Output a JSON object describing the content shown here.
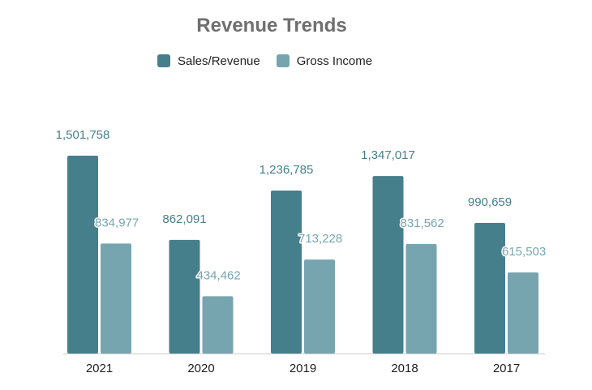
{
  "chart_data": {
    "type": "bar",
    "title": "Revenue Trends",
    "categories": [
      "2021",
      "2020",
      "2019",
      "2018",
      "2017"
    ],
    "series": [
      {
        "name": "Sales/Revenue",
        "color": "#457f8b",
        "values": [
          1501758,
          862091,
          1236785,
          1347017,
          990659
        ],
        "labels": [
          "1,501,758",
          "862,091",
          "1,236,785",
          "1,347,017",
          "990,659"
        ]
      },
      {
        "name": "Gross Income",
        "color": "#77a5af",
        "values": [
          834977,
          434462,
          713228,
          831562,
          615503
        ],
        "labels": [
          "834,977",
          "434,462",
          "713,228",
          "831,562",
          "615,503"
        ]
      }
    ],
    "ylim": [
      0,
      1501758
    ],
    "grid": false,
    "legend_position": "top"
  },
  "colors": {
    "title": "#6f6f6f",
    "axis": "#cccccc",
    "tick_text": "#1f1f1f"
  }
}
